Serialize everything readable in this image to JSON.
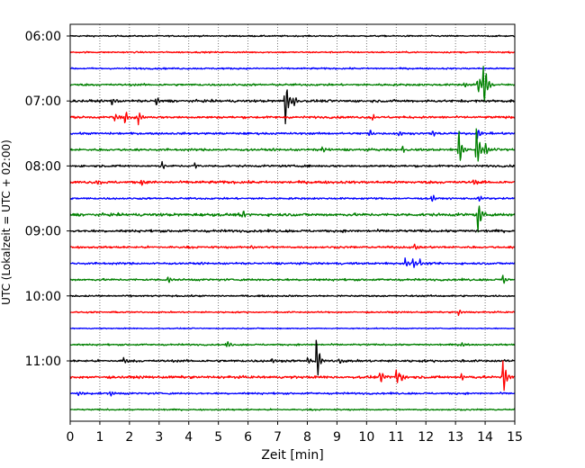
{
  "chart_data": {
    "type": "line",
    "title": "",
    "xlabel": "Zeit  [min]",
    "ylabel": "UTC (Lokalzeit = UTC + 02:00)",
    "xlim": [
      0,
      15
    ],
    "x_ticks": [
      0,
      1,
      2,
      3,
      4,
      5,
      6,
      7,
      8,
      9,
      10,
      11,
      12,
      13,
      14,
      15
    ],
    "x_tick_labels": [
      "0",
      "1",
      "2",
      "3",
      "4",
      "5",
      "6",
      "7",
      "8",
      "9",
      "10",
      "11",
      "12",
      "13",
      "14",
      "15"
    ],
    "y_ticks": [
      "06:00",
      "07:00",
      "08:00",
      "09:00",
      "10:00",
      "11:00"
    ],
    "vertical_grid": "dotted, every 1 min",
    "trace_interval_min": 15,
    "trace_color_cycle": [
      "#000000",
      "#ff0000",
      "#0000ff",
      "#008000"
    ],
    "series": [
      {
        "start": "06:00",
        "color": "#000000",
        "noise": 0.7,
        "events": []
      },
      {
        "start": "06:15",
        "color": "#ff0000",
        "noise": 0.7,
        "events": []
      },
      {
        "start": "06:30",
        "color": "#0000ff",
        "noise": 0.8,
        "events": []
      },
      {
        "start": "06:45",
        "color": "#008000",
        "noise": 1.0,
        "events": [
          {
            "t": 13.3,
            "amp": 4
          },
          {
            "t": 13.75,
            "amp": 14
          },
          {
            "t": 13.95,
            "amp": 40
          }
        ]
      },
      {
        "start": "07:00",
        "color": "#000000",
        "noise": 1.2,
        "events": [
          {
            "t": 1.4,
            "amp": 7
          },
          {
            "t": 2.9,
            "amp": 5
          },
          {
            "t": 7.25,
            "amp": 42
          },
          {
            "t": 7.55,
            "amp": 8
          }
        ]
      },
      {
        "start": "07:15",
        "color": "#ff0000",
        "noise": 1.1,
        "events": [
          {
            "t": 1.5,
            "amp": 6
          },
          {
            "t": 1.85,
            "amp": 9
          },
          {
            "t": 2.3,
            "amp": 8
          },
          {
            "t": 10.2,
            "amp": 4
          }
        ]
      },
      {
        "start": "07:30",
        "color": "#0000ff",
        "noise": 1.0,
        "events": [
          {
            "t": 10.1,
            "amp": 7
          },
          {
            "t": 11.1,
            "amp": 5
          },
          {
            "t": 12.2,
            "amp": 6
          },
          {
            "t": 13.75,
            "amp": 10
          }
        ]
      },
      {
        "start": "07:45",
        "color": "#008000",
        "noise": 1.1,
        "events": [
          {
            "t": 8.5,
            "amp": 5
          },
          {
            "t": 11.2,
            "amp": 5
          },
          {
            "t": 13.1,
            "amp": 28
          },
          {
            "t": 13.7,
            "amp": 40
          },
          {
            "t": 14.0,
            "amp": 8
          }
        ]
      },
      {
        "start": "08:00",
        "color": "#000000",
        "noise": 1.0,
        "events": [
          {
            "t": 3.1,
            "amp": 6
          },
          {
            "t": 4.2,
            "amp": 4
          }
        ]
      },
      {
        "start": "08:15",
        "color": "#ff0000",
        "noise": 1.3,
        "events": [
          {
            "t": 0.9,
            "amp": 5
          },
          {
            "t": 2.4,
            "amp": 6
          },
          {
            "t": 13.6,
            "amp": 4
          }
        ]
      },
      {
        "start": "08:30",
        "color": "#0000ff",
        "noise": 0.9,
        "events": [
          {
            "t": 12.2,
            "amp": 6
          },
          {
            "t": 13.8,
            "amp": 6
          }
        ]
      },
      {
        "start": "08:45",
        "color": "#008000",
        "noise": 1.4,
        "events": [
          {
            "t": 5.8,
            "amp": 6
          },
          {
            "t": 13.75,
            "amp": 30
          }
        ]
      },
      {
        "start": "09:00",
        "color": "#000000",
        "noise": 1.2,
        "events": []
      },
      {
        "start": "09:15",
        "color": "#ff0000",
        "noise": 1.0,
        "events": [
          {
            "t": 6.1,
            "amp": 4
          },
          {
            "t": 11.6,
            "amp": 4
          }
        ]
      },
      {
        "start": "09:30",
        "color": "#0000ff",
        "noise": 1.0,
        "events": [
          {
            "t": 11.3,
            "amp": 7
          },
          {
            "t": 11.55,
            "amp": 8
          },
          {
            "t": 11.8,
            "amp": 6
          }
        ]
      },
      {
        "start": "09:45",
        "color": "#008000",
        "noise": 1.0,
        "events": [
          {
            "t": 3.3,
            "amp": 5
          },
          {
            "t": 14.6,
            "amp": 7
          }
        ]
      },
      {
        "start": "10:00",
        "color": "#000000",
        "noise": 0.8,
        "events": []
      },
      {
        "start": "10:15",
        "color": "#ff0000",
        "noise": 0.7,
        "events": [
          {
            "t": 13.1,
            "amp": 4
          }
        ]
      },
      {
        "start": "10:30",
        "color": "#0000ff",
        "noise": 0.5,
        "events": []
      },
      {
        "start": "10:45",
        "color": "#008000",
        "noise": 0.8,
        "events": [
          {
            "t": 5.3,
            "amp": 5
          },
          {
            "t": 13.2,
            "amp": 4
          }
        ]
      },
      {
        "start": "11:00",
        "color": "#000000",
        "noise": 1.1,
        "events": [
          {
            "t": 1.8,
            "amp": 5
          },
          {
            "t": 6.8,
            "amp": 4
          },
          {
            "t": 8.0,
            "amp": 6
          },
          {
            "t": 8.3,
            "amp": 34
          },
          {
            "t": 9.05,
            "amp": 5
          }
        ]
      },
      {
        "start": "11:15",
        "color": "#ff0000",
        "noise": 1.2,
        "events": [
          {
            "t": 10.45,
            "amp": 10
          },
          {
            "t": 11.0,
            "amp": 14
          },
          {
            "t": 11.15,
            "amp": 9
          },
          {
            "t": 13.2,
            "amp": 6
          },
          {
            "t": 14.6,
            "amp": 30
          }
        ]
      },
      {
        "start": "11:30",
        "color": "#0000ff",
        "noise": 0.9,
        "events": [
          {
            "t": 0.25,
            "amp": 6
          },
          {
            "t": 1.35,
            "amp": 5
          }
        ]
      },
      {
        "start": "11:45",
        "color": "#008000",
        "noise": 0.7,
        "events": []
      }
    ]
  }
}
